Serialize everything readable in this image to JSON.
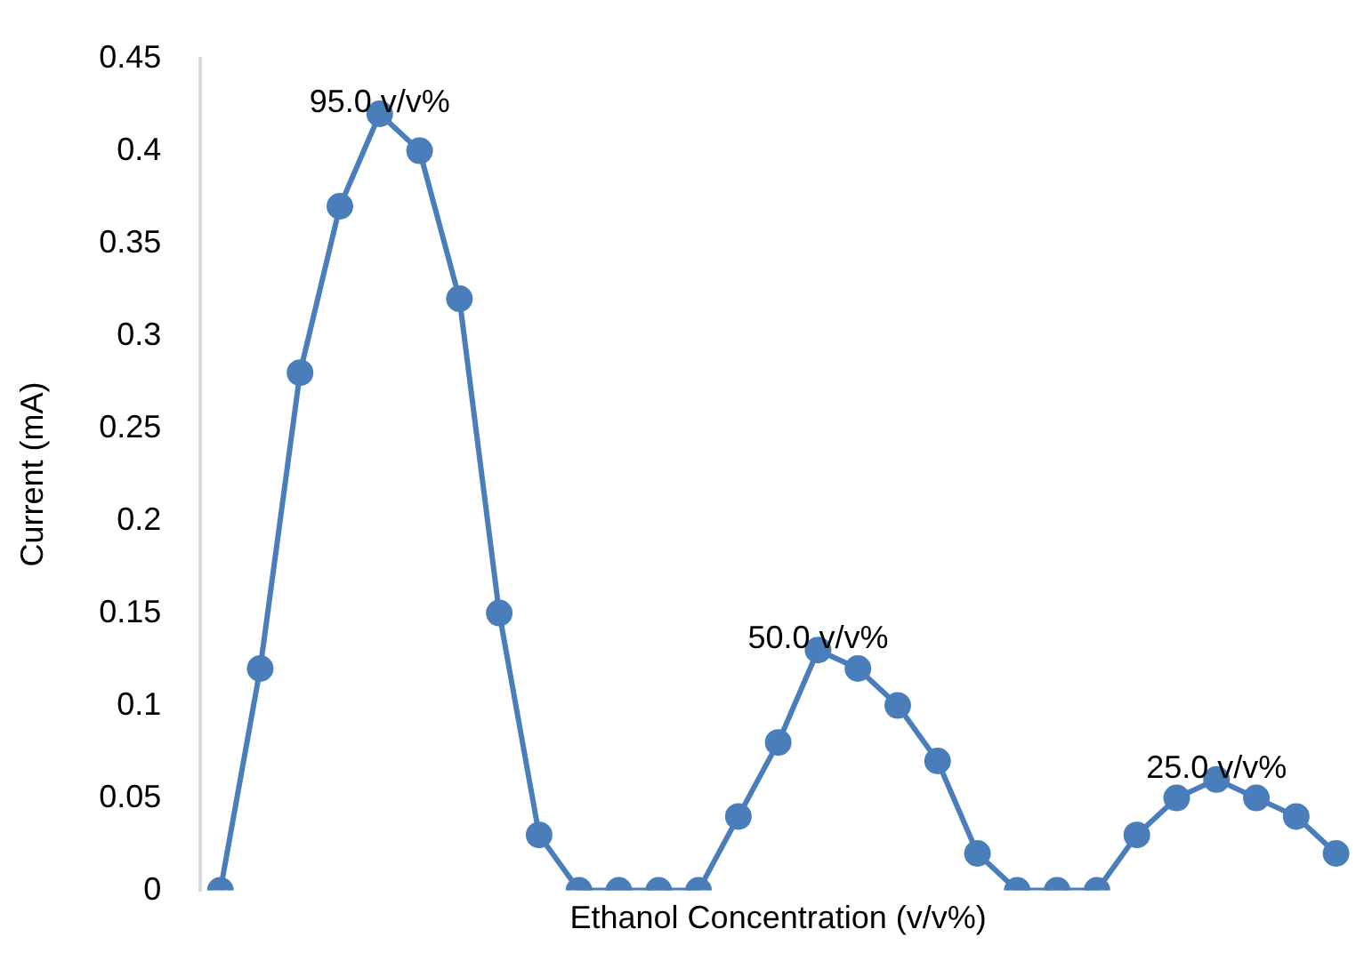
{
  "chart_data": {
    "type": "line",
    "xlabel": "Ethanol Concentration (v/v%)",
    "ylabel": "Current (mA)",
    "categories": [
      null,
      null,
      null,
      null,
      null,
      null,
      null,
      null,
      null,
      null,
      null,
      null,
      null,
      null,
      null,
      null,
      null,
      null,
      null,
      null,
      null,
      null,
      null,
      null,
      null,
      null,
      null,
      null,
      null
    ],
    "series": [
      {
        "color": "#4a7ebb",
        "values": [
          0,
          0.12,
          0.28,
          0.37,
          0.42,
          0.4,
          0.32,
          0.15,
          0.03,
          0,
          0,
          0,
          0,
          0.04,
          0.08,
          0.13,
          0.12,
          0.1,
          0.07,
          0.02,
          0,
          0,
          0,
          0.03,
          0.05,
          0.06,
          0.05,
          0.04,
          0.02
        ]
      }
    ],
    "ylim": [
      0,
      0.45
    ],
    "yticks": [
      0,
      0.05,
      0.1,
      0.15,
      0.2,
      0.25,
      0.3,
      0.35,
      0.4,
      0.45
    ],
    "annotations": [
      {
        "text": "95.0 v/v%",
        "y": 0.42
      },
      {
        "text": "50.0 v/v%",
        "y": 0.13
      },
      {
        "text": "25.0 v/v%",
        "y": 0.06
      }
    ],
    "grid": false,
    "legend": false,
    "marker": "circle",
    "line_style": "solid"
  }
}
